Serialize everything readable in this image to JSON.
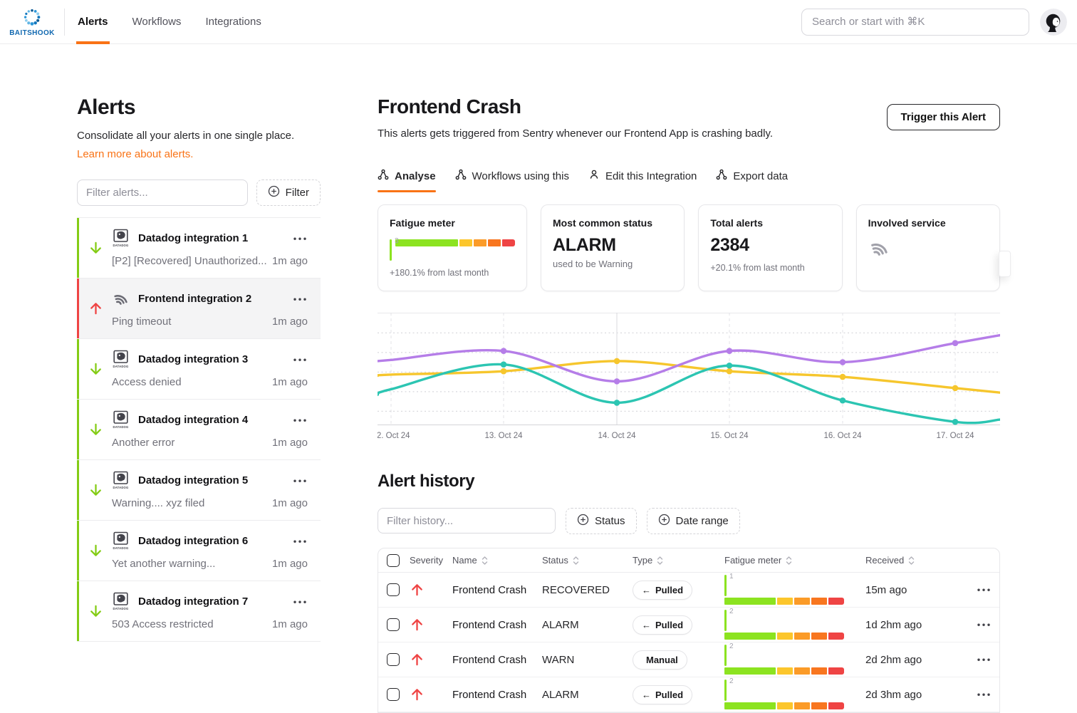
{
  "header": {
    "brand": "BAITSHOOK",
    "nav": [
      {
        "label": "Alerts",
        "active": true
      },
      {
        "label": "Workflows",
        "active": false
      },
      {
        "label": "Integrations",
        "active": false
      }
    ],
    "search_placeholder": "Search or start with ⌘K"
  },
  "sidebar": {
    "title": "Alerts",
    "subtitle": "Consolidate all your alerts in one single place.",
    "link": "Learn more about alerts.",
    "filter_placeholder": "Filter alerts...",
    "filter_button": "Filter",
    "alerts": [
      {
        "name": "Datadog integration 1",
        "detail": "[P2] [Recovered] Unauthorized...",
        "time": "1m ago",
        "direction": "down",
        "icon": "datadog",
        "selected": false
      },
      {
        "name": "Frontend integration 2",
        "detail": "Ping timeout",
        "time": "1m ago",
        "direction": "up",
        "icon": "sentry",
        "selected": true
      },
      {
        "name": "Datadog integration 3",
        "detail": "Access denied",
        "time": "1m ago",
        "direction": "down",
        "icon": "datadog",
        "selected": false
      },
      {
        "name": "Datadog integration 4",
        "detail": "Another error",
        "time": "1m ago",
        "direction": "down",
        "icon": "datadog",
        "selected": false
      },
      {
        "name": "Datadog integration 5",
        "detail": "Warning.... xyz filed",
        "time": "1m ago",
        "direction": "down",
        "icon": "datadog",
        "selected": false
      },
      {
        "name": "Datadog integration 6",
        "detail": "Yet another warning...",
        "time": "1m ago",
        "direction": "down",
        "icon": "datadog",
        "selected": false
      },
      {
        "name": "Datadog integration 7",
        "detail": "503 Access restricted",
        "time": "1m ago",
        "direction": "down",
        "icon": "datadog",
        "selected": false
      }
    ]
  },
  "main": {
    "title": "Frontend Crash",
    "description": "This alerts gets triggered from Sentry whenever our Frontend App is crashing badly.",
    "trigger_button": "Trigger this Alert",
    "tabs": [
      {
        "label": "Analyse",
        "icon": "workflow",
        "active": true
      },
      {
        "label": "Workflows using this",
        "icon": "workflow",
        "active": false
      },
      {
        "label": "Edit this Integration",
        "icon": "person",
        "active": false
      },
      {
        "label": "Export data",
        "icon": "workflow",
        "active": false
      }
    ],
    "cards": {
      "fatigue": {
        "title": "Fatigue meter",
        "value": "3",
        "green_pct": 55,
        "delta": "+180.1% from last month"
      },
      "status": {
        "title": "Most common status",
        "value": "ALARM",
        "note": "used to be Warning"
      },
      "total": {
        "title": "Total alerts",
        "value": "2384",
        "delta": "+20.1% from last month"
      },
      "service": {
        "title": "Involved service",
        "icon": "sentry"
      }
    }
  },
  "chart_data": {
    "type": "line",
    "x_labels": [
      "12. Oct 24",
      "13. Oct 24",
      "14. Oct 24",
      "15. Oct 24",
      "16. Oct 24",
      "17. Oct 24"
    ],
    "y_range": [
      0,
      100
    ],
    "grid": true,
    "legend": false,
    "series": [
      {
        "name": "purple",
        "color": "#b57de8",
        "values": [
          58,
          66,
          39,
          66,
          56,
          73
        ],
        "edges": [
          57,
          80
        ]
      },
      {
        "name": "teal",
        "color": "#2cc5b2",
        "values": [
          32,
          54,
          20,
          53,
          22,
          3
        ],
        "edges": [
          27,
          5
        ]
      },
      {
        "name": "yellow",
        "color": "#f6c62d",
        "values": [
          45,
          48,
          57,
          48,
          43,
          33
        ],
        "edges": [
          44,
          29
        ]
      }
    ]
  },
  "history": {
    "title": "Alert history",
    "filter_placeholder": "Filter history...",
    "buttons": [
      "Status",
      "Date range"
    ],
    "columns": [
      "Severity",
      "Name",
      "Status",
      "Type",
      "Fatigue meter",
      "Received"
    ],
    "meter_green_pct": 45,
    "rows": [
      {
        "severity": "up",
        "name": "Frontend Crash",
        "status": "RECOVERED",
        "type": "Pulled",
        "type_icon": "arrow",
        "fatigue": "1",
        "received": "15m ago"
      },
      {
        "severity": "up",
        "name": "Frontend Crash",
        "status": "ALARM",
        "type": "Pulled",
        "type_icon": "arrow",
        "fatigue": "2",
        "received": "1d 2hm ago"
      },
      {
        "severity": "up",
        "name": "Frontend Crash",
        "status": "WARN",
        "type": "Manual",
        "type_icon": null,
        "fatigue": "2",
        "received": "2d 2hm ago"
      },
      {
        "severity": "up",
        "name": "Frontend Crash",
        "status": "ALARM",
        "type": "Pulled",
        "type_icon": "arrow",
        "fatigue": "2",
        "received": "2d 3hm ago"
      }
    ]
  },
  "colors": {
    "accent_orange": "#f97316",
    "green": "#84cc16",
    "red": "#ef4444",
    "meter_segments": [
      "#8ce320",
      "#fcc62c",
      "#fb9b28",
      "#f8761f",
      "#ef4444"
    ],
    "chart_purple": "#b57de8",
    "chart_teal": "#2cc5b2",
    "chart_yellow": "#f6c62d"
  }
}
